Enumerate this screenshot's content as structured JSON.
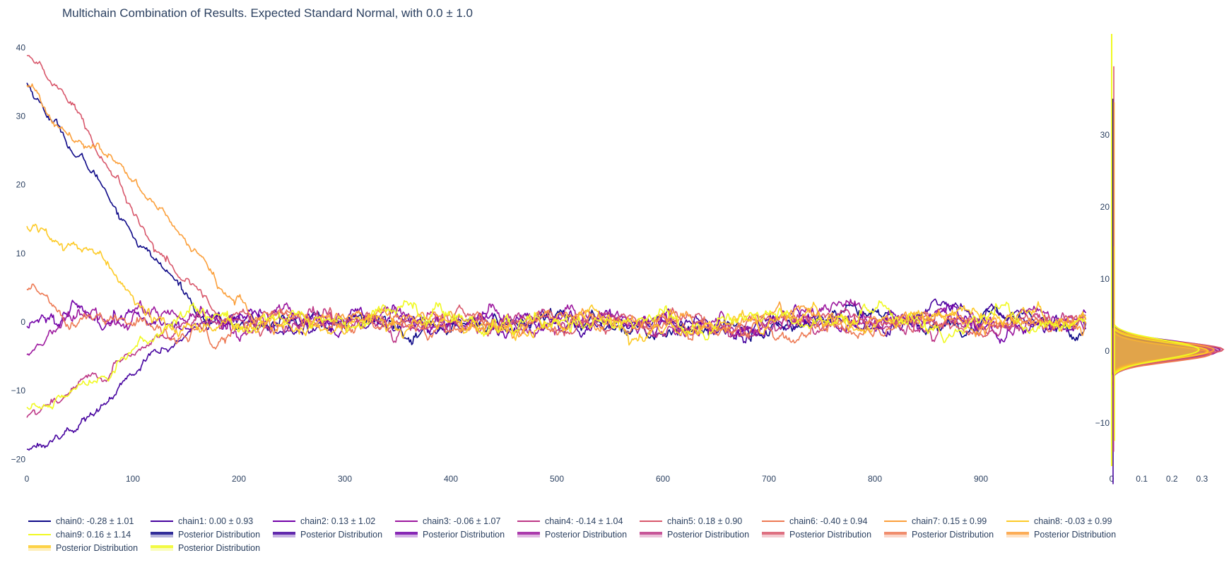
{
  "chart_data": [
    {
      "type": "line",
      "title": "Multichain Combination of Results. Expected Standard Normal, with 0.0 ± 1.0",
      "xlabel": "",
      "ylabel": "",
      "xlim": [
        0,
        1000
      ],
      "ylim": [
        -21,
        42
      ],
      "x_ticks": [
        "0",
        "100",
        "200",
        "300",
        "400",
        "500",
        "600",
        "700",
        "800",
        "900"
      ],
      "y_ticks": [
        "−20",
        "−10",
        "0",
        "10",
        "20",
        "30",
        "40"
      ],
      "x_tick_values": [
        0,
        100,
        200,
        300,
        400,
        500,
        600,
        700,
        800,
        900
      ],
      "y_tick_values": [
        -20,
        -10,
        0,
        10,
        20,
        30,
        40
      ],
      "grid": false,
      "n_samples": 1000,
      "series": [
        {
          "name": "chain0: -0.28 ± 1.01",
          "color": "#0d0887",
          "start": 35.0,
          "burn_in_end": 175,
          "stationary_mean": -0.28,
          "stationary_std": 1.01
        },
        {
          "name": "chain1: 0.00 ± 0.93",
          "color": "#46039f",
          "start": -18.5,
          "burn_in_end": 170,
          "stationary_mean": 0.0,
          "stationary_std": 0.93
        },
        {
          "name": "chain2: 0.13 ± 1.02",
          "color": "#7201a8",
          "start": -0.8,
          "burn_in_end": 5,
          "stationary_mean": 0.13,
          "stationary_std": 1.02
        },
        {
          "name": "chain3: -0.06 ± 1.07",
          "color": "#9c179e",
          "start": -5.0,
          "burn_in_end": 35,
          "stationary_mean": -0.06,
          "stationary_std": 1.07
        },
        {
          "name": "chain4: -0.14 ± 1.04",
          "color": "#bd3786",
          "start": -14.0,
          "burn_in_end": 150,
          "stationary_mean": -0.14,
          "stationary_std": 1.04
        },
        {
          "name": "chain5: 0.18 ± 0.90",
          "color": "#d8576b",
          "start": 39.5,
          "burn_in_end": 185,
          "stationary_mean": 0.18,
          "stationary_std": 0.9
        },
        {
          "name": "chain6: -0.40 ± 0.94",
          "color": "#ed7953",
          "start": 4.5,
          "burn_in_end": 40,
          "stationary_mean": -0.4,
          "stationary_std": 0.94
        },
        {
          "name": "chain7: 0.15 ± 0.99",
          "color": "#fb9f3a",
          "start": 34.5,
          "burn_in_end": 215,
          "stationary_mean": 0.15,
          "stationary_std": 0.99
        },
        {
          "name": "chain8: -0.03 ± 0.99",
          "color": "#fdca26",
          "start": 14.5,
          "burn_in_end": 120,
          "stationary_mean": -0.03,
          "stationary_std": 0.99
        },
        {
          "name": "chain9: 0.16 ± 1.14",
          "color": "#f0f921",
          "start": -12.5,
          "burn_in_end": 140,
          "stationary_mean": 0.16,
          "stationary_std": 1.14
        }
      ]
    },
    {
      "type": "area",
      "title": "",
      "orientation": "horizontal",
      "xlim": [
        0,
        0.38
      ],
      "ylim": [
        -16,
        44
      ],
      "x_ticks": [
        "0",
        "0.1",
        "0.2",
        "0.3"
      ],
      "y_ticks": [
        "−10",
        "0",
        "10",
        "20",
        "30"
      ],
      "x_tick_values": [
        0,
        0.1,
        0.2,
        0.3
      ],
      "y_tick_values": [
        -10,
        0,
        10,
        20,
        30
      ],
      "grid": false,
      "series_label": "Posterior Distribution",
      "peak_density": [
        0.31,
        0.33,
        0.36,
        0.35,
        0.34,
        0.37,
        0.33,
        0.34,
        0.32,
        0.29
      ]
    }
  ],
  "legend": {
    "rows": [
      [
        {
          "label": "chain0: -0.28 ± 1.01",
          "kind": "line",
          "color": "#0d0887"
        },
        {
          "label": "chain1: 0.00 ± 0.93",
          "kind": "line",
          "color": "#46039f"
        },
        {
          "label": "chain2: 0.13 ± 1.02",
          "kind": "line",
          "color": "#7201a8"
        },
        {
          "label": "chain3: -0.06 ± 1.07",
          "kind": "line",
          "color": "#9c179e"
        },
        {
          "label": "chain4: -0.14 ± 1.04",
          "kind": "line",
          "color": "#bd3786"
        },
        {
          "label": "chain5: 0.18 ± 0.90",
          "kind": "line",
          "color": "#d8576b"
        },
        {
          "label": "chain6: -0.40 ± 0.94",
          "kind": "line",
          "color": "#ed7953"
        },
        {
          "label": "chain7: 0.15 ± 0.99",
          "kind": "line",
          "color": "#fb9f3a"
        },
        {
          "label": "chain8: -0.03 ± 0.99",
          "kind": "line",
          "color": "#fdca26"
        }
      ],
      [
        {
          "label": "chain9: 0.16 ± 1.14",
          "kind": "line",
          "color": "#f0f921"
        },
        {
          "label": "Posterior Distribution",
          "kind": "fill",
          "color": "#0d0887"
        },
        {
          "label": "Posterior Distribution",
          "kind": "fill",
          "color": "#46039f"
        },
        {
          "label": "Posterior Distribution",
          "kind": "fill",
          "color": "#7201a8"
        },
        {
          "label": "Posterior Distribution",
          "kind": "fill",
          "color": "#9c179e"
        },
        {
          "label": "Posterior Distribution",
          "kind": "fill",
          "color": "#bd3786"
        },
        {
          "label": "Posterior Distribution",
          "kind": "fill",
          "color": "#d8576b"
        },
        {
          "label": "Posterior Distribution",
          "kind": "fill",
          "color": "#ed7953"
        },
        {
          "label": "Posterior Distribution",
          "kind": "fill",
          "color": "#fb9f3a"
        }
      ],
      [
        {
          "label": "Posterior Distribution",
          "kind": "fill",
          "color": "#fdca26"
        },
        {
          "label": "Posterior Distribution",
          "kind": "fill",
          "color": "#f0f921"
        }
      ]
    ]
  }
}
